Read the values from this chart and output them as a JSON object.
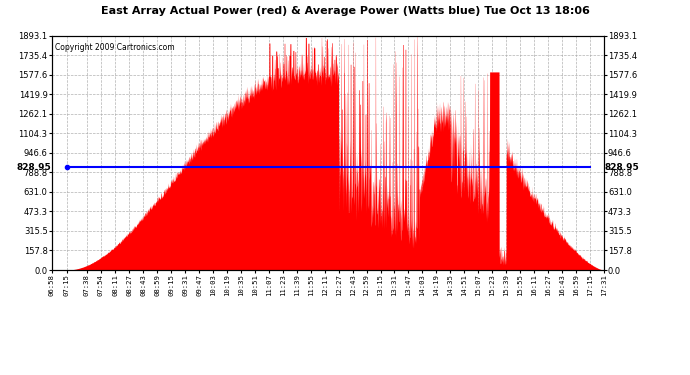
{
  "title": "East Array Actual Power (red) & Average Power (Watts blue) Tue Oct 13 18:06",
  "copyright": "Copyright 2009 Cartronics.com",
  "ymax": 1893.1,
  "ymin": 0.0,
  "yticks": [
    0.0,
    157.8,
    315.5,
    473.3,
    631.0,
    788.8,
    946.6,
    1104.3,
    1262.1,
    1419.9,
    1577.6,
    1735.4,
    1893.1
  ],
  "average_power": 828.95,
  "avg_label": "828.95",
  "background_color": "#ffffff",
  "fill_color": "#ff0000",
  "line_color": "#0000ff",
  "grid_color": "#aaaaaa",
  "time_labels": [
    "06:58",
    "07:15",
    "07:38",
    "07:54",
    "08:11",
    "08:27",
    "08:43",
    "08:59",
    "09:15",
    "09:31",
    "09:47",
    "10:03",
    "10:19",
    "10:35",
    "10:51",
    "11:07",
    "11:23",
    "11:39",
    "11:55",
    "12:11",
    "12:27",
    "12:43",
    "12:59",
    "13:15",
    "13:31",
    "13:47",
    "14:03",
    "14:19",
    "14:35",
    "14:51",
    "15:07",
    "15:23",
    "15:39",
    "15:55",
    "16:11",
    "16:27",
    "16:43",
    "16:59",
    "17:15",
    "17:31"
  ]
}
